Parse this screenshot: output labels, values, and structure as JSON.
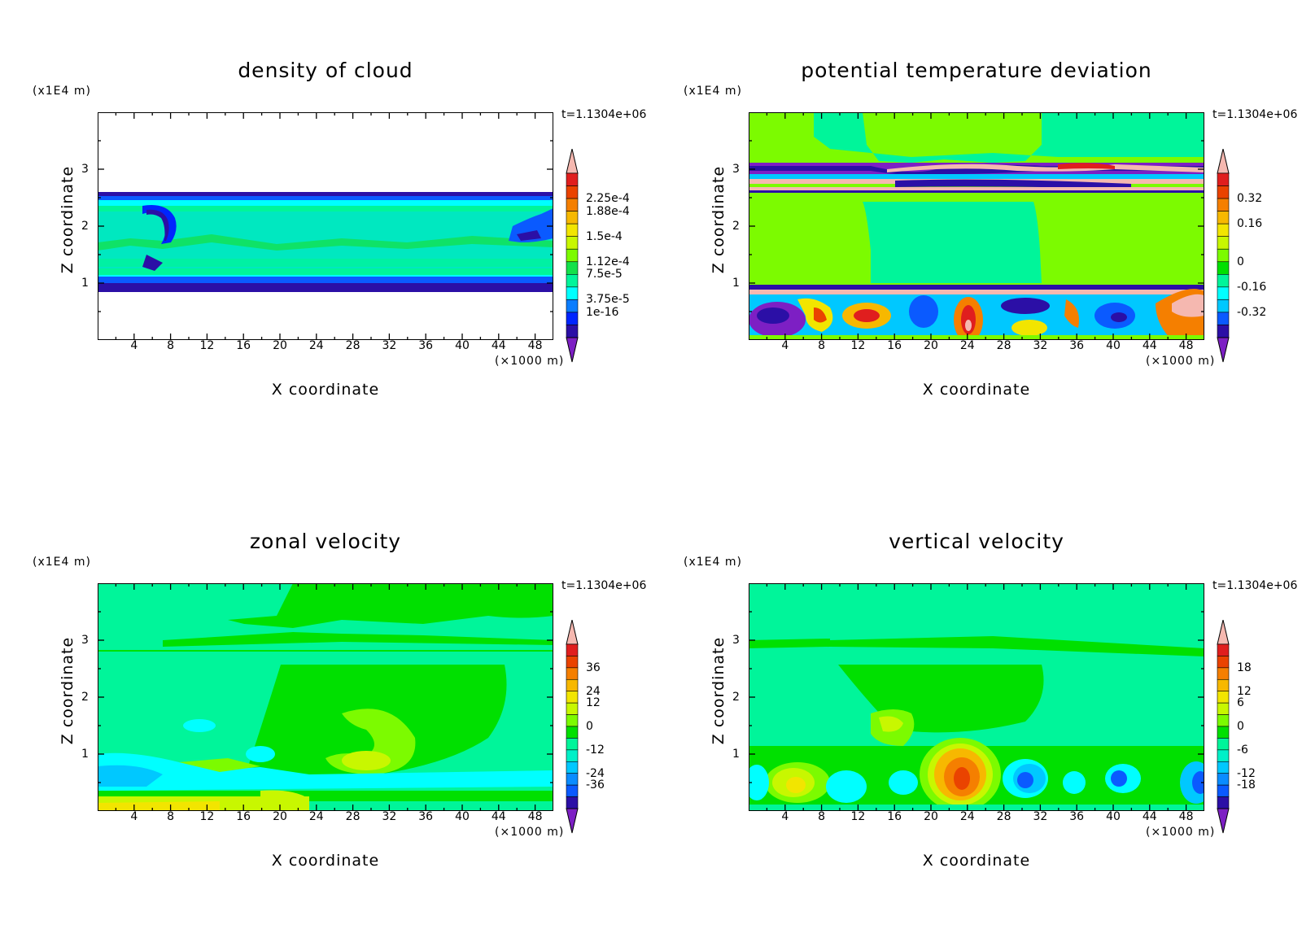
{
  "colorbars": {
    "cloud": [
      "#7d1fc4",
      "#2b0fa6",
      "#0025ff",
      "#0a7dff",
      "#00ffff",
      "#00f59a",
      "#14e04a",
      "#7cfb00",
      "#c8f700",
      "#f2e500",
      "#f7b800",
      "#f57f00",
      "#ea4300",
      "#e01e1e",
      "#f5b8b0"
    ],
    "theta": [
      "#7d1fc4",
      "#2b0fa6",
      "#0a5aff",
      "#00c8ff",
      "#00ffff",
      "#00f59a",
      "#00e000",
      "#7cfb00",
      "#c8f700",
      "#f2e500",
      "#f7b800",
      "#f57f00",
      "#ea4300",
      "#e01e1e",
      "#f5b8b0"
    ],
    "velocity": [
      "#7d1fc4",
      "#2b0fa6",
      "#0a5aff",
      "#0a8cff",
      "#00c8ff",
      "#00f0c8",
      "#00f59a",
      "#00e000",
      "#7cfb00",
      "#c8f700",
      "#f2e500",
      "#f7b800",
      "#f57f00",
      "#ea4300",
      "#e01e1e",
      "#f5b8b0"
    ]
  },
  "chart_data": [
    {
      "type": "heatmap",
      "title": "density of cloud",
      "xlabel": "X coordinate",
      "ylabel": "Z coordinate",
      "x_unit_label": "(×1000 m)",
      "y_unit_label": "(x1E4 m)",
      "timestamp": "t=1.1304e+06",
      "x_ticks": [
        "4",
        "8",
        "12",
        "16",
        "20",
        "24",
        "28",
        "32",
        "36",
        "40",
        "44",
        "48"
      ],
      "y_ticks": [
        "1",
        "2",
        "3"
      ],
      "xlim": [
        0,
        50
      ],
      "ylim": [
        0,
        4
      ],
      "colorbar_labels": [
        "2.25e-4",
        "1.88e-4",
        "1.5e-4",
        "1.12e-4",
        "7.5e-5",
        "3.75e-5",
        "1e-16"
      ],
      "colorbar_palette": "cloud",
      "features": [
        {
          "kind": "cloud_layer",
          "z_range": [
            0.9,
            2.55
          ],
          "x_range": [
            0,
            50
          ]
        }
      ]
    },
    {
      "type": "heatmap",
      "title": "potential temperature deviation",
      "xlabel": "X coordinate",
      "ylabel": "Z coordinate",
      "x_unit_label": "(×1000 m)",
      "y_unit_label": "(x1E4 m)",
      "timestamp": "t=1.1304e+06",
      "x_ticks": [
        "4",
        "8",
        "12",
        "16",
        "20",
        "24",
        "28",
        "32",
        "36",
        "40",
        "44",
        "48"
      ],
      "y_ticks": [
        "1",
        "2",
        "3"
      ],
      "xlim": [
        0,
        50
      ],
      "ylim": [
        0,
        4
      ],
      "colorbar_labels": [
        "0.32",
        "0.16",
        "0",
        "-0.16",
        "-0.32"
      ],
      "colorbar_palette": "theta",
      "features": [
        {
          "kind": "inversion_bands",
          "z_values": [
            2.6,
            2.95
          ]
        },
        {
          "kind": "boundary_layer_turbulence",
          "z_range": [
            0,
            0.9
          ]
        }
      ]
    },
    {
      "type": "heatmap",
      "title": "zonal velocity",
      "xlabel": "X coordinate",
      "ylabel": "Z coordinate",
      "x_unit_label": "(×1000 m)",
      "y_unit_label": "(x1E4 m)",
      "timestamp": "t=1.1304e+06",
      "x_ticks": [
        "4",
        "8",
        "12",
        "16",
        "20",
        "24",
        "28",
        "32",
        "36",
        "40",
        "44",
        "48"
      ],
      "y_ticks": [
        "1",
        "2",
        "3"
      ],
      "xlim": [
        0,
        50
      ],
      "ylim": [
        0,
        4
      ],
      "colorbar_labels": [
        "36",
        "24",
        "12",
        "0",
        "-12",
        "-24",
        "-36"
      ],
      "colorbar_palette": "velocity",
      "features": [
        {
          "kind": "positive_lobe",
          "center": [
            29,
            1.2
          ]
        }
      ]
    },
    {
      "type": "heatmap",
      "title": "vertical velocity",
      "xlabel": "X coordinate",
      "ylabel": "Z coordinate",
      "x_unit_label": "(×1000 m)",
      "y_unit_label": "(x1E4 m)",
      "timestamp": "t=1.1304e+06",
      "x_ticks": [
        "4",
        "8",
        "12",
        "16",
        "20",
        "24",
        "28",
        "32",
        "36",
        "40",
        "44",
        "48"
      ],
      "y_ticks": [
        "1",
        "2",
        "3"
      ],
      "xlim": [
        0,
        50
      ],
      "ylim": [
        0,
        4
      ],
      "colorbar_labels": [
        "18",
        "12",
        "6",
        "0",
        "-6",
        "-12",
        "-18"
      ],
      "colorbar_palette": "velocity",
      "features": [
        {
          "kind": "updraft",
          "center": [
            25,
            0.6
          ]
        },
        {
          "kind": "downdraft",
          "center": [
            34,
            0.5
          ]
        }
      ]
    }
  ]
}
